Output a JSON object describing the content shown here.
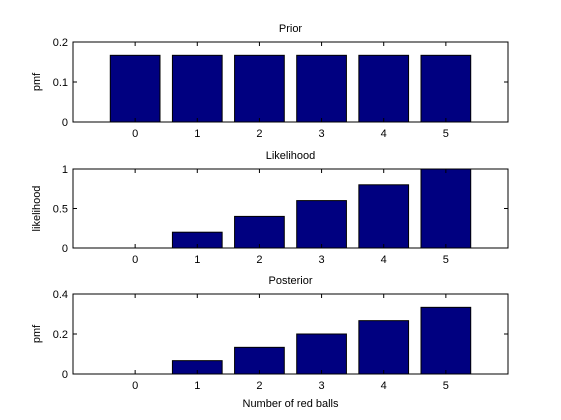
{
  "figure": {
    "background": "#ffffff"
  },
  "chart_data": [
    {
      "type": "bar",
      "title": "Prior",
      "xlabel": "",
      "ylabel": "pmf",
      "categories": [
        "0",
        "1",
        "2",
        "3",
        "4",
        "5"
      ],
      "x": [
        0,
        1,
        2,
        3,
        4,
        5
      ],
      "values": [
        0.1667,
        0.1667,
        0.1667,
        0.1667,
        0.1667,
        0.1667
      ],
      "xlim": [
        -1,
        6
      ],
      "ylim": [
        0,
        0.2
      ],
      "yticks": [
        0,
        0.1,
        0.2
      ],
      "ytick_labels": [
        "0",
        "0.1",
        "0.2"
      ],
      "bar_color": "#000080",
      "grid": false,
      "legend": "none"
    },
    {
      "type": "bar",
      "title": "Likelihood",
      "xlabel": "",
      "ylabel": "likelihood",
      "categories": [
        "0",
        "1",
        "2",
        "3",
        "4",
        "5"
      ],
      "x": [
        0,
        1,
        2,
        3,
        4,
        5
      ],
      "values": [
        0,
        0.2,
        0.4,
        0.6,
        0.8,
        1.0
      ],
      "xlim": [
        -1,
        6
      ],
      "ylim": [
        0,
        1
      ],
      "yticks": [
        0,
        0.5,
        1
      ],
      "ytick_labels": [
        "0",
        "0.5",
        "1"
      ],
      "bar_color": "#000080",
      "grid": false,
      "legend": "none"
    },
    {
      "type": "bar",
      "title": "Posterior",
      "xlabel": "Number of red balls",
      "ylabel": "pmf",
      "categories": [
        "0",
        "1",
        "2",
        "3",
        "4",
        "5"
      ],
      "x": [
        0,
        1,
        2,
        3,
        4,
        5
      ],
      "values": [
        0,
        0.0667,
        0.1333,
        0.2,
        0.2667,
        0.3333
      ],
      "xlim": [
        -1,
        6
      ],
      "ylim": [
        0,
        0.4
      ],
      "yticks": [
        0,
        0.2,
        0.4
      ],
      "ytick_labels": [
        "0",
        "0.2",
        "0.4"
      ],
      "bar_color": "#000080",
      "grid": false,
      "legend": "none"
    }
  ]
}
